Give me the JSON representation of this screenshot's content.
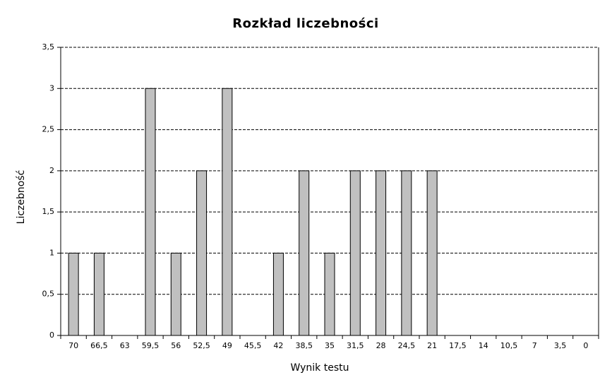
{
  "chart_data": {
    "type": "bar",
    "title": "Rozkład liczebności",
    "x_label": "Wynik testu",
    "y_label": "Liczebność",
    "categories": [
      "70",
      "66,5",
      "63",
      "59,5",
      "56",
      "52,5",
      "49",
      "45,5",
      "42",
      "38,5",
      "35",
      "31,5",
      "28",
      "24,5",
      "21",
      "17,5",
      "14",
      "10,5",
      "7",
      "3,5",
      "0"
    ],
    "values": [
      1,
      1,
      0,
      3,
      1,
      2,
      3,
      0,
      1,
      2,
      1,
      2,
      2,
      2,
      2,
      0,
      0,
      0,
      0,
      0,
      0
    ],
    "color": "#c0c0c0",
    "ylim": [
      0,
      3.5
    ],
    "yticks": [
      0,
      {
        "value": 0.5,
        "label": "0,5"
      },
      1,
      {
        "value": 1.5,
        "label": "1,5"
      },
      2,
      {
        "value": 2.5,
        "label": "2,5"
      },
      3,
      {
        "value": 3.5,
        "label": "3,5"
      }
    ],
    "grid": true
  }
}
